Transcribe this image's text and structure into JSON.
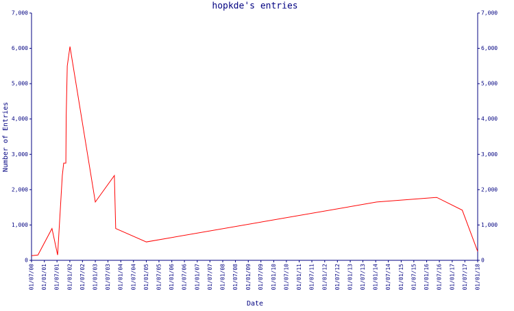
{
  "chart_data": {
    "type": "line",
    "title": "hopkde's entries",
    "y_label": "Number of Entries",
    "x_label": "Date",
    "color": "#ff0000",
    "x": [
      "2000-07-01",
      "2000-10-01",
      "2001-04-20",
      "2001-07-10",
      "2001-09-15",
      "2001-10-05",
      "2001-11-05",
      "2001-11-10",
      "2001-11-25",
      "2002-01-03",
      "2003-01-01",
      "2003-10-01",
      "2003-10-20",
      "2005-01-01",
      "2014-01-15",
      "2016-05-25",
      "2017-05-25",
      "2018-01-01"
    ],
    "values": [
      130,
      150,
      900,
      150,
      2400,
      2750,
      2750,
      4100,
      5500,
      6050,
      1650,
      2400,
      900,
      520,
      1650,
      1780,
      1420,
      250
    ],
    "xlim": [
      "2000-07-01",
      "2018-01-01"
    ],
    "xticks": [
      {
        "value": "2000-07-01",
        "label": "01/07/00"
      },
      {
        "value": "2001-01-01",
        "label": "01/01/01"
      },
      {
        "value": "2001-07-01",
        "label": "01/07/01"
      },
      {
        "value": "2002-01-01",
        "label": "01/01/02"
      },
      {
        "value": "2002-07-01",
        "label": "01/07/02"
      },
      {
        "value": "2003-01-01",
        "label": "01/01/03"
      },
      {
        "value": "2003-07-01",
        "label": "01/07/03"
      },
      {
        "value": "2004-01-01",
        "label": "01/01/04"
      },
      {
        "value": "2004-07-01",
        "label": "01/07/04"
      },
      {
        "value": "2005-01-01",
        "label": "01/01/05"
      },
      {
        "value": "2005-07-01",
        "label": "01/07/05"
      },
      {
        "value": "2006-01-01",
        "label": "01/01/06"
      },
      {
        "value": "2006-07-01",
        "label": "01/07/06"
      },
      {
        "value": "2007-01-01",
        "label": "01/01/07"
      },
      {
        "value": "2007-07-01",
        "label": "01/07/07"
      },
      {
        "value": "2008-01-01",
        "label": "01/01/08"
      },
      {
        "value": "2008-07-01",
        "label": "01/07/08"
      },
      {
        "value": "2009-01-01",
        "label": "01/01/09"
      },
      {
        "value": "2009-07-01",
        "label": "01/07/09"
      },
      {
        "value": "2010-01-01",
        "label": "01/01/10"
      },
      {
        "value": "2010-07-01",
        "label": "01/07/10"
      },
      {
        "value": "2011-01-01",
        "label": "01/01/11"
      },
      {
        "value": "2011-07-01",
        "label": "01/07/11"
      },
      {
        "value": "2012-01-01",
        "label": "01/01/12"
      },
      {
        "value": "2012-07-01",
        "label": "01/07/12"
      },
      {
        "value": "2013-01-01",
        "label": "01/01/13"
      },
      {
        "value": "2013-07-01",
        "label": "01/07/13"
      },
      {
        "value": "2014-01-01",
        "label": "01/01/14"
      },
      {
        "value": "2014-07-01",
        "label": "01/07/14"
      },
      {
        "value": "2015-01-01",
        "label": "01/01/15"
      },
      {
        "value": "2015-07-01",
        "label": "01/07/15"
      },
      {
        "value": "2016-01-01",
        "label": "01/01/16"
      },
      {
        "value": "2016-07-01",
        "label": "01/07/16"
      },
      {
        "value": "2017-01-01",
        "label": "01/01/17"
      },
      {
        "value": "2017-07-01",
        "label": "01/07/17"
      },
      {
        "value": "2018-01-01",
        "label": "01/01/18"
      }
    ],
    "ylim": [
      0,
      7000
    ],
    "yticks": [
      0,
      {
        "value": 1000,
        "label": "1,000"
      },
      {
        "value": 2000,
        "label": "2,000"
      },
      {
        "value": 3000,
        "label": "3,000"
      },
      {
        "value": 4000,
        "label": "4,000"
      },
      {
        "value": 5000,
        "label": "5,000"
      },
      {
        "value": 6000,
        "label": "6,000"
      },
      {
        "value": 7000,
        "label": "7,000"
      }
    ]
  }
}
